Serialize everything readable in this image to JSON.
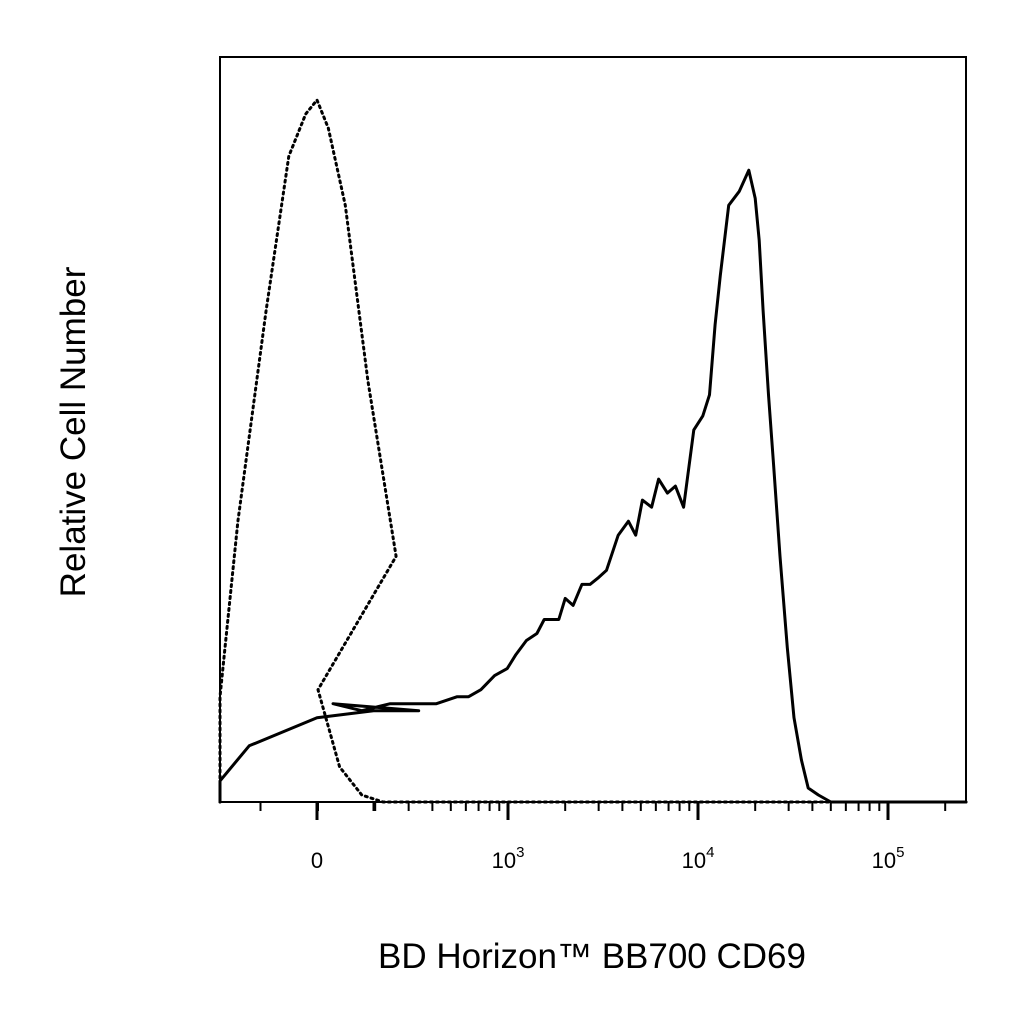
{
  "chart_data": {
    "type": "line",
    "title": "",
    "xlabel": "BD Horizon™ BB700  CD69",
    "ylabel": "Relative Cell Number",
    "x_scale": "biexponential",
    "x_ticks": [
      {
        "value": 0,
        "base": "0",
        "exp": ""
      },
      {
        "value": 1000,
        "base": "10",
        "exp": "3"
      },
      {
        "value": 10000,
        "base": "10",
        "exp": "4"
      },
      {
        "value": 100000,
        "base": "10",
        "exp": "5"
      }
    ],
    "xlim": [
      -250,
      262000
    ],
    "ylim": [
      0,
      100
    ],
    "grid": false,
    "legend": "none",
    "series": [
      {
        "line_style": "solid",
        "color": "#000000",
        "x": [
          -250,
          -130,
          -60,
          0,
          50,
          90,
          120,
          170,
          240,
          320,
          420,
          540,
          620,
          720,
          850,
          990,
          1100,
          1250,
          1420,
          1550,
          1650,
          1850,
          2000,
          2200,
          2450,
          2700,
          3000,
          3300,
          3800,
          4300,
          4700,
          5100,
          5700,
          6200,
          6900,
          7600,
          8400,
          9500,
          10600,
          11500,
          12300,
          13100,
          14500,
          16500,
          18500,
          20000,
          21000,
          22000,
          23500,
          25000,
          27000,
          29500,
          32000,
          35000,
          38000,
          43000,
          50000,
          60000,
          80000,
          130000,
          262000
        ],
        "y": [
          0,
          3,
          8,
          12,
          13,
          13,
          14,
          13,
          14,
          14,
          14,
          15,
          15,
          16,
          18,
          19,
          21,
          23,
          24,
          26,
          26,
          26,
          29,
          28,
          31,
          31,
          32,
          33,
          38,
          40,
          38,
          43,
          42,
          46,
          44,
          45,
          42,
          53,
          55,
          58,
          68,
          75,
          85,
          87,
          90,
          86,
          80,
          70,
          58,
          48,
          35,
          22,
          12,
          6,
          2,
          1,
          0,
          0,
          0,
          0,
          0
        ]
      },
      {
        "line_style": "dotted",
        "color": "#000000",
        "x": [
          -250,
          -170,
          -130,
          -100,
          -70,
          -45,
          -25,
          -10,
          0,
          10,
          25,
          45,
          70,
          100,
          130,
          170,
          220,
          262000
        ],
        "y": [
          0,
          1,
          3,
          15,
          40,
          70,
          92,
          98,
          100,
          96,
          85,
          60,
          35,
          16,
          5,
          1,
          0,
          0
        ]
      }
    ]
  }
}
